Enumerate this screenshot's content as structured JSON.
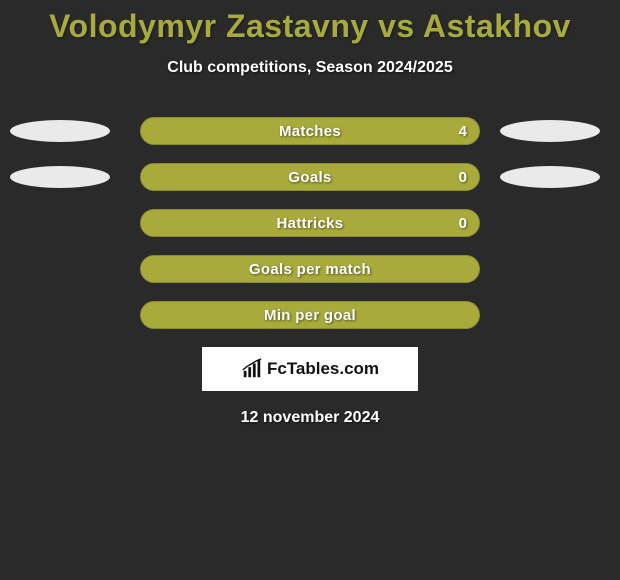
{
  "title": "Volodymyr Zastavny vs Astakhov",
  "subtitle": "Club competitions, Season 2024/2025",
  "stats": [
    {
      "label": "Matches",
      "value": "4",
      "show_value": true,
      "left_ellipse": true,
      "right_ellipse": true
    },
    {
      "label": "Goals",
      "value": "0",
      "show_value": true,
      "left_ellipse": true,
      "right_ellipse": true
    },
    {
      "label": "Hattricks",
      "value": "0",
      "show_value": true,
      "left_ellipse": false,
      "right_ellipse": false
    },
    {
      "label": "Goals per match",
      "value": "",
      "show_value": false,
      "left_ellipse": false,
      "right_ellipse": false
    },
    {
      "label": "Min per goal",
      "value": "",
      "show_value": false,
      "left_ellipse": false,
      "right_ellipse": false
    }
  ],
  "logo_text": "FcTables.com",
  "date": "12 november 2024",
  "colors": {
    "bg": "#2a2a2a",
    "accent": "#a8aa3c",
    "ellipse": "#eaeaea",
    "white": "#ffffff"
  }
}
